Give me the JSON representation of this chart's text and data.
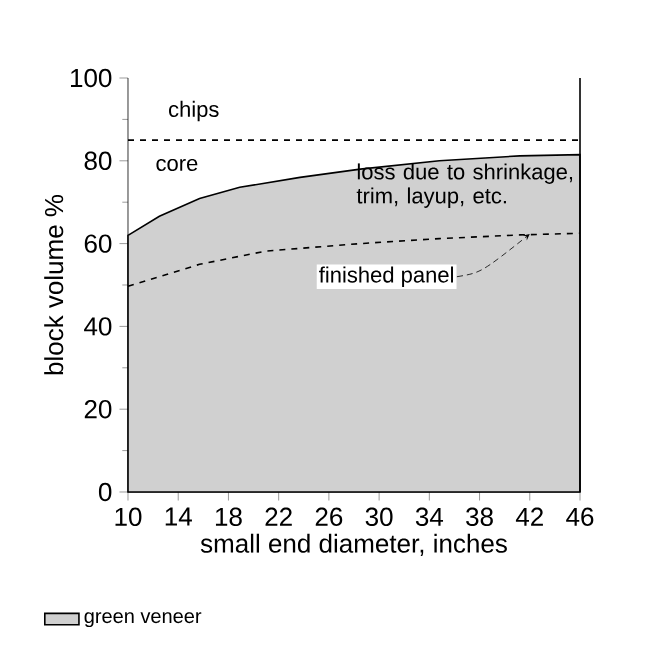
{
  "chart_data": {
    "type": "area",
    "xlabel": "small end diameter, inches",
    "ylabel": "block volume %",
    "xlim": [
      10,
      46
    ],
    "xticks": [
      10,
      14,
      18,
      22,
      26,
      30,
      34,
      38,
      42,
      46
    ],
    "ylim": [
      0,
      100
    ],
    "yticks": [
      0,
      20,
      40,
      60,
      80,
      100
    ],
    "series": [
      {
        "name": "green veneer",
        "color": "#d0d0d0",
        "x": [
          10,
          12.5,
          15.7,
          18.9,
          23.7,
          28.5,
          34.8,
          41.2,
          46
        ],
        "values": [
          62,
          66.6,
          70.9,
          73.6,
          76,
          78,
          80,
          81.2,
          81.5
        ]
      },
      {
        "type": "line",
        "line_style": "dashed",
        "color": "#000000",
        "x": [
          10,
          15.7,
          21,
          28.5,
          34.8,
          41.2,
          46
        ],
        "values": [
          49.7,
          55,
          58.2,
          60,
          61.2,
          62.1,
          62.5
        ]
      }
    ],
    "ref_lines": [
      {
        "axis": "y",
        "value": 85,
        "line_style": "dashed",
        "color": "#000000"
      }
    ],
    "annotations": [
      "chips",
      "core",
      "loss due to shrinkage, trim, layup, etc.",
      {
        "text": "finished panel",
        "x": 42,
        "y": 62.3
      }
    ],
    "legend": "bottom left",
    "marker": "none"
  }
}
